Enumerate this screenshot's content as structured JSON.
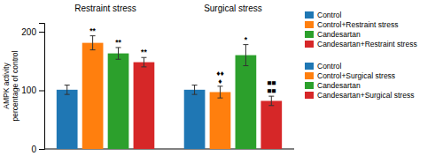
{
  "chart_data": [
    {
      "type": "bar",
      "title": "Restraint stress",
      "ylabel": "AMPK activity\npercentage of control",
      "ylim": [
        0,
        215
      ],
      "yticks": [
        0,
        100,
        200
      ],
      "series": [
        {
          "name": "Control",
          "values": [
            101
          ],
          "errors": [
            8
          ]
        },
        {
          "name": "Control+Restraint stress",
          "values": [
            181
          ],
          "errors": [
            12
          ],
          "annotations": [
            "**"
          ]
        },
        {
          "name": "Candesartan",
          "values": [
            163
          ],
          "errors": [
            10
          ],
          "annotations": [
            "**"
          ]
        },
        {
          "name": "Candesartan+Restraint stress",
          "values": [
            148
          ],
          "errors": [
            8
          ],
          "annotations": [
            "**"
          ]
        }
      ]
    },
    {
      "type": "bar",
      "title": "Surgical stress",
      "series": [
        {
          "name": "Control",
          "values": [
            101
          ],
          "errors": [
            8
          ]
        },
        {
          "name": "Control+Surgical stress",
          "values": [
            97
          ],
          "errors": [
            10
          ],
          "annotations": [
            "♦",
            "♦♦"
          ]
        },
        {
          "name": "Candesartan",
          "values": [
            160
          ],
          "errors": [
            18
          ],
          "annotations": [
            "*"
          ]
        },
        {
          "name": "Candesartan+Surgical stress",
          "values": [
            82
          ],
          "errors": [
            8
          ],
          "annotations": [
            "■■",
            "■■"
          ]
        }
      ]
    }
  ]
}
